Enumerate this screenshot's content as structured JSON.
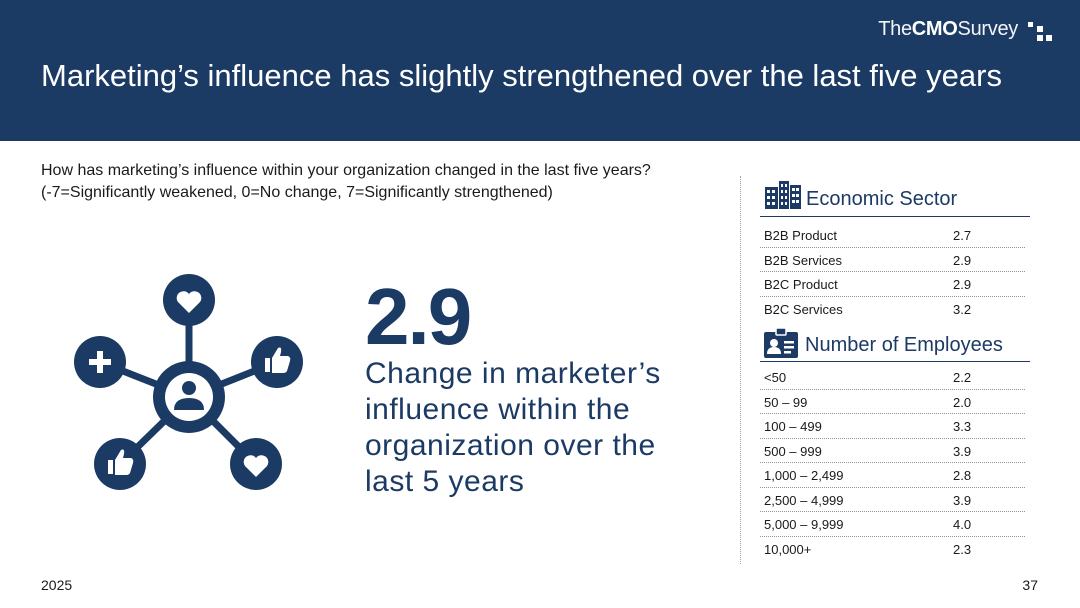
{
  "header": {
    "brand_the": "The",
    "brand_cmo": "CMO",
    "brand_survey": "Survey",
    "title": "Marketing’s influence has slightly strengthened over the last five years"
  },
  "question": {
    "line1": "How has marketing’s influence within your organization changed in the last five years?",
    "line2": "(-7=Significantly weakened, 0=No change, 7=Significantly strengthened)"
  },
  "highlight": {
    "value": "2.9",
    "caption": "Change in marketer’s influence within the organization over the last 5 years"
  },
  "economic_sector": {
    "title": "Economic Sector",
    "icon": "buildings-icon",
    "rows": [
      {
        "label": "B2B Product",
        "value": "2.7"
      },
      {
        "label": "B2B Services",
        "value": "2.9"
      },
      {
        "label": "B2C Product",
        "value": "2.9"
      },
      {
        "label": "B2C Services",
        "value": "3.2"
      }
    ]
  },
  "employees": {
    "title": "Number of Employees",
    "icon": "id-badge-icon",
    "rows": [
      {
        "label": "<50",
        "value": "2.2"
      },
      {
        "label": "50 – 99",
        "value": "2.0"
      },
      {
        "label": "100 – 499",
        "value": "3.3"
      },
      {
        "label": "500 – 999",
        "value": "3.9"
      },
      {
        "label": "1,000 – 2,499",
        "value": "2.8"
      },
      {
        "label": "2,500 – 4,999",
        "value": "3.9"
      },
      {
        "label": "5,000 – 9,999",
        "value": "4.0"
      },
      {
        "label": "10,000+",
        "value": "2.3"
      }
    ]
  },
  "footer": {
    "year": "2025",
    "page": "37"
  },
  "colors": {
    "navy": "#1b3a64",
    "text": "#1a1a1a"
  }
}
